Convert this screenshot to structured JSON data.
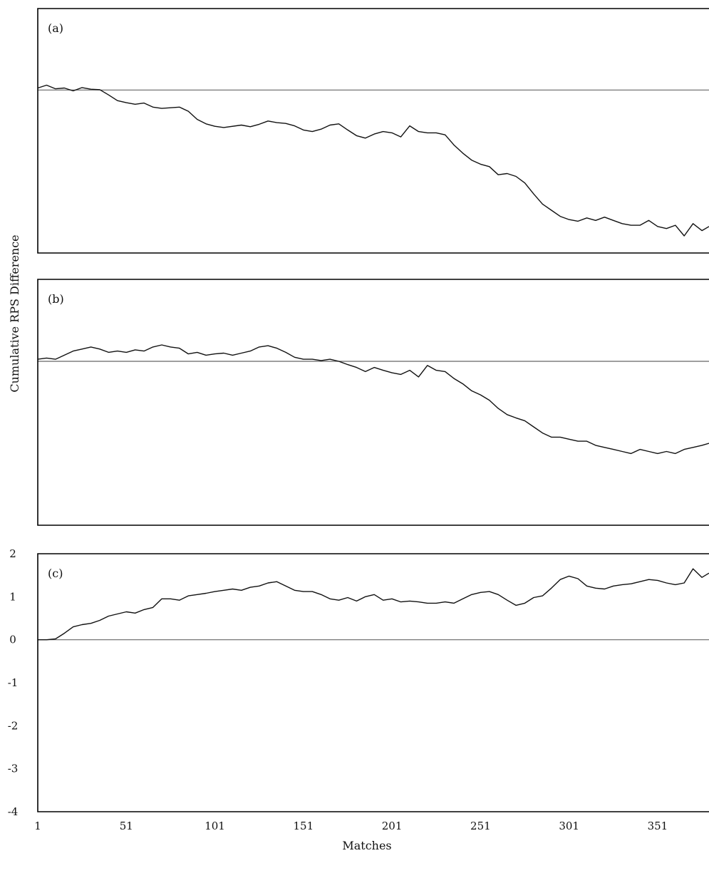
{
  "chart_data": {
    "type": "line",
    "xlabel": "Matches",
    "ylabel": "Cumulative RPS Difference",
    "x_ticks": [
      "1",
      "51",
      "101",
      "151",
      "201",
      "251",
      "301",
      "351"
    ],
    "xlim": [
      1,
      380
    ],
    "grid": false,
    "panels": [
      {
        "label": "(a)",
        "ylim": [
          -4,
          2
        ],
        "y_ticks": [],
        "zero_line": 0,
        "points": [
          [
            1,
            0.05
          ],
          [
            6,
            0.12
          ],
          [
            11,
            0.03
          ],
          [
            16,
            0.05
          ],
          [
            21,
            -0.02
          ],
          [
            26,
            0.06
          ],
          [
            31,
            0.02
          ],
          [
            36,
            0.01
          ],
          [
            41,
            -0.12
          ],
          [
            46,
            -0.26
          ],
          [
            51,
            -0.31
          ],
          [
            56,
            -0.35
          ],
          [
            61,
            -0.32
          ],
          [
            66,
            -0.42
          ],
          [
            71,
            -0.45
          ],
          [
            81,
            -0.42
          ],
          [
            86,
            -0.52
          ],
          [
            91,
            -0.72
          ],
          [
            96,
            -0.83
          ],
          [
            101,
            -0.89
          ],
          [
            106,
            -0.92
          ],
          [
            116,
            -0.86
          ],
          [
            121,
            -0.9
          ],
          [
            126,
            -0.84
          ],
          [
            131,
            -0.76
          ],
          [
            136,
            -0.8
          ],
          [
            141,
            -0.82
          ],
          [
            146,
            -0.88
          ],
          [
            151,
            -0.98
          ],
          [
            156,
            -1.02
          ],
          [
            161,
            -0.96
          ],
          [
            166,
            -0.86
          ],
          [
            171,
            -0.83
          ],
          [
            176,
            -0.98
          ],
          [
            181,
            -1.12
          ],
          [
            186,
            -1.18
          ],
          [
            191,
            -1.08
          ],
          [
            196,
            -1.02
          ],
          [
            201,
            -1.05
          ],
          [
            206,
            -1.15
          ],
          [
            211,
            -0.88
          ],
          [
            216,
            -1.02
          ],
          [
            221,
            -1.05
          ],
          [
            226,
            -1.05
          ],
          [
            231,
            -1.1
          ],
          [
            236,
            -1.35
          ],
          [
            241,
            -1.55
          ],
          [
            246,
            -1.72
          ],
          [
            251,
            -1.82
          ],
          [
            256,
            -1.88
          ],
          [
            261,
            -2.08
          ],
          [
            266,
            -2.05
          ],
          [
            271,
            -2.12
          ],
          [
            276,
            -2.28
          ],
          [
            281,
            -2.55
          ],
          [
            286,
            -2.8
          ],
          [
            291,
            -2.95
          ],
          [
            296,
            -3.1
          ],
          [
            301,
            -3.18
          ],
          [
            306,
            -3.22
          ],
          [
            311,
            -3.14
          ],
          [
            316,
            -3.2
          ],
          [
            321,
            -3.12
          ],
          [
            326,
            -3.2
          ],
          [
            331,
            -3.28
          ],
          [
            336,
            -3.32
          ],
          [
            341,
            -3.32
          ],
          [
            346,
            -3.2
          ],
          [
            351,
            -3.35
          ],
          [
            356,
            -3.4
          ],
          [
            361,
            -3.32
          ],
          [
            366,
            -3.58
          ],
          [
            371,
            -3.28
          ],
          [
            376,
            -3.45
          ],
          [
            380,
            -3.35
          ]
        ]
      },
      {
        "label": "(b)",
        "ylim": [
          -4,
          2
        ],
        "y_ticks": [],
        "zero_line": 0,
        "points": [
          [
            1,
            0.05
          ],
          [
            6,
            0.08
          ],
          [
            11,
            0.05
          ],
          [
            16,
            0.15
          ],
          [
            21,
            0.25
          ],
          [
            26,
            0.3
          ],
          [
            31,
            0.35
          ],
          [
            36,
            0.3
          ],
          [
            41,
            0.22
          ],
          [
            46,
            0.25
          ],
          [
            51,
            0.22
          ],
          [
            56,
            0.28
          ],
          [
            61,
            0.25
          ],
          [
            66,
            0.35
          ],
          [
            71,
            0.4
          ],
          [
            76,
            0.35
          ],
          [
            81,
            0.32
          ],
          [
            86,
            0.18
          ],
          [
            91,
            0.22
          ],
          [
            96,
            0.15
          ],
          [
            101,
            0.18
          ],
          [
            106,
            0.2
          ],
          [
            111,
            0.15
          ],
          [
            116,
            0.2
          ],
          [
            121,
            0.25
          ],
          [
            126,
            0.35
          ],
          [
            131,
            0.38
          ],
          [
            136,
            0.32
          ],
          [
            141,
            0.22
          ],
          [
            146,
            0.1
          ],
          [
            151,
            0.05
          ],
          [
            156,
            0.05
          ],
          [
            161,
            0.02
          ],
          [
            166,
            0.05
          ],
          [
            171,
            0.0
          ],
          [
            176,
            -0.08
          ],
          [
            181,
            -0.15
          ],
          [
            186,
            -0.25
          ],
          [
            191,
            -0.15
          ],
          [
            196,
            -0.22
          ],
          [
            201,
            -0.28
          ],
          [
            206,
            -0.32
          ],
          [
            211,
            -0.22
          ],
          [
            216,
            -0.38
          ],
          [
            221,
            -0.1
          ],
          [
            226,
            -0.22
          ],
          [
            231,
            -0.25
          ],
          [
            236,
            -0.42
          ],
          [
            241,
            -0.55
          ],
          [
            246,
            -0.72
          ],
          [
            251,
            -0.82
          ],
          [
            256,
            -0.95
          ],
          [
            261,
            -1.15
          ],
          [
            266,
            -1.3
          ],
          [
            271,
            -1.38
          ],
          [
            276,
            -1.45
          ],
          [
            281,
            -1.6
          ],
          [
            286,
            -1.75
          ],
          [
            291,
            -1.85
          ],
          [
            296,
            -1.85
          ],
          [
            301,
            -1.9
          ],
          [
            306,
            -1.95
          ],
          [
            311,
            -1.95
          ],
          [
            316,
            -2.05
          ],
          [
            321,
            -2.1
          ],
          [
            326,
            -2.15
          ],
          [
            331,
            -2.2
          ],
          [
            336,
            -2.25
          ],
          [
            341,
            -2.15
          ],
          [
            346,
            -2.2
          ],
          [
            351,
            -2.25
          ],
          [
            356,
            -2.2
          ],
          [
            361,
            -2.25
          ],
          [
            366,
            -2.15
          ],
          [
            371,
            -2.1
          ],
          [
            376,
            -2.05
          ],
          [
            380,
            -2.0
          ]
        ]
      },
      {
        "label": "(c)",
        "ylim": [
          -4,
          2
        ],
        "y_ticks": [
          "2",
          "1",
          "0",
          "-1",
          "-2",
          "-3",
          "-4"
        ],
        "zero_line": 0,
        "points": [
          [
            1,
            0.0
          ],
          [
            6,
            0.0
          ],
          [
            11,
            0.02
          ],
          [
            16,
            0.15
          ],
          [
            21,
            0.3
          ],
          [
            26,
            0.35
          ],
          [
            31,
            0.38
          ],
          [
            36,
            0.45
          ],
          [
            41,
            0.55
          ],
          [
            46,
            0.6
          ],
          [
            51,
            0.65
          ],
          [
            56,
            0.62
          ],
          [
            61,
            0.7
          ],
          [
            66,
            0.75
          ],
          [
            71,
            0.95
          ],
          [
            76,
            0.95
          ],
          [
            81,
            0.92
          ],
          [
            86,
            1.02
          ],
          [
            91,
            1.05
          ],
          [
            96,
            1.08
          ],
          [
            101,
            1.12
          ],
          [
            106,
            1.15
          ],
          [
            111,
            1.18
          ],
          [
            116,
            1.15
          ],
          [
            121,
            1.22
          ],
          [
            126,
            1.25
          ],
          [
            131,
            1.32
          ],
          [
            136,
            1.35
          ],
          [
            141,
            1.25
          ],
          [
            146,
            1.15
          ],
          [
            151,
            1.12
          ],
          [
            156,
            1.12
          ],
          [
            161,
            1.05
          ],
          [
            166,
            0.95
          ],
          [
            171,
            0.92
          ],
          [
            176,
            0.98
          ],
          [
            181,
            0.9
          ],
          [
            186,
            1.0
          ],
          [
            191,
            1.05
          ],
          [
            196,
            0.92
          ],
          [
            201,
            0.95
          ],
          [
            206,
            0.88
          ],
          [
            211,
            0.9
          ],
          [
            216,
            0.88
          ],
          [
            221,
            0.85
          ],
          [
            226,
            0.85
          ],
          [
            231,
            0.88
          ],
          [
            236,
            0.85
          ],
          [
            241,
            0.95
          ],
          [
            246,
            1.05
          ],
          [
            251,
            1.1
          ],
          [
            256,
            1.12
          ],
          [
            261,
            1.05
          ],
          [
            266,
            0.92
          ],
          [
            271,
            0.8
          ],
          [
            276,
            0.85
          ],
          [
            281,
            0.98
          ],
          [
            286,
            1.02
          ],
          [
            291,
            1.2
          ],
          [
            296,
            1.4
          ],
          [
            301,
            1.48
          ],
          [
            306,
            1.42
          ],
          [
            311,
            1.25
          ],
          [
            316,
            1.2
          ],
          [
            321,
            1.18
          ],
          [
            326,
            1.25
          ],
          [
            331,
            1.28
          ],
          [
            336,
            1.3
          ],
          [
            341,
            1.35
          ],
          [
            346,
            1.4
          ],
          [
            351,
            1.38
          ],
          [
            356,
            1.32
          ],
          [
            361,
            1.28
          ],
          [
            366,
            1.32
          ],
          [
            371,
            1.65
          ],
          [
            376,
            1.45
          ],
          [
            380,
            1.55
          ]
        ]
      }
    ]
  }
}
